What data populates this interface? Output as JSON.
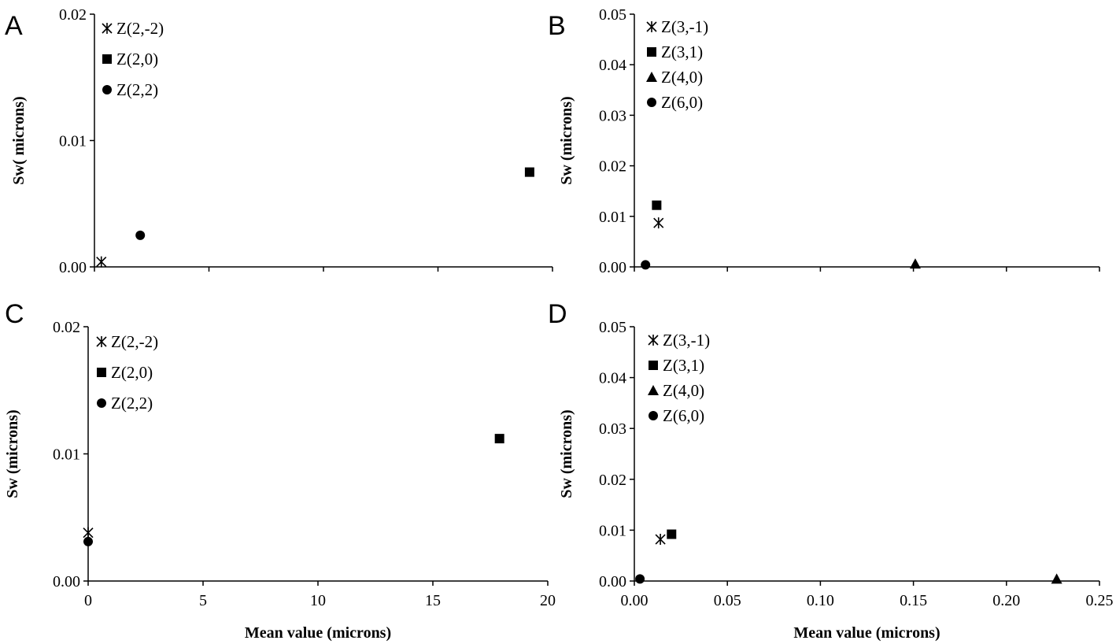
{
  "chart_data": [
    {
      "panel": "A",
      "type": "scatter",
      "xlabel": "",
      "ylabel": "Sw( microns)",
      "xlim": [
        0,
        20
      ],
      "ylim": [
        0,
        0.02
      ],
      "yticks": [
        "0.00",
        "0.01",
        "0.02"
      ],
      "xticks_labeled": false,
      "series": [
        {
          "name": "Z(2,-2)",
          "marker": "asterisk",
          "points": [
            [
              0.3,
              0.0004
            ]
          ]
        },
        {
          "name": "Z(2,0)",
          "marker": "square",
          "points": [
            [
              19.0,
              0.0075
            ]
          ]
        },
        {
          "name": "Z(2,2)",
          "marker": "circle",
          "points": [
            [
              2.0,
              0.0025
            ]
          ]
        }
      ]
    },
    {
      "panel": "B",
      "type": "scatter",
      "xlabel": "",
      "ylabel": "Sw (microns)",
      "xlim": [
        0,
        0.25
      ],
      "ylim": [
        0,
        0.05
      ],
      "yticks": [
        "0.00",
        "0.01",
        "0.02",
        "0.03",
        "0.04",
        "0.05"
      ],
      "xticks_labeled": false,
      "series": [
        {
          "name": "Z(3,-1)",
          "marker": "asterisk",
          "points": [
            [
              0.013,
              0.0087
            ]
          ]
        },
        {
          "name": "Z(3,1)",
          "marker": "square",
          "points": [
            [
              0.012,
              0.0122
            ]
          ]
        },
        {
          "name": "Z(4,0)",
          "marker": "triangle",
          "points": [
            [
              0.151,
              0.0006
            ]
          ]
        },
        {
          "name": "Z(6,0)",
          "marker": "circle",
          "points": [
            [
              0.006,
              0.0004
            ]
          ]
        }
      ]
    },
    {
      "panel": "C",
      "type": "scatter",
      "xlabel": "Mean value (microns)",
      "ylabel": "Sw (microns)",
      "xlim": [
        0,
        20
      ],
      "ylim": [
        0,
        0.02
      ],
      "xticks": [
        "0",
        "5",
        "10",
        "15",
        "20"
      ],
      "yticks": [
        "0.00",
        "0.01",
        "0.02"
      ],
      "xticks_labeled": true,
      "series": [
        {
          "name": "Z(2,-2)",
          "marker": "asterisk",
          "points": [
            [
              0.0,
              0.0038
            ]
          ]
        },
        {
          "name": "Z(2,0)",
          "marker": "square",
          "points": [
            [
              17.9,
              0.0112
            ]
          ]
        },
        {
          "name": "Z(2,2)",
          "marker": "circle",
          "points": [
            [
              0.0,
              0.0031
            ]
          ]
        }
      ]
    },
    {
      "panel": "D",
      "type": "scatter",
      "xlabel": "Mean value (microns)",
      "ylabel": "Sw (microns)",
      "xlim": [
        0,
        0.25
      ],
      "ylim": [
        0,
        0.05
      ],
      "xticks": [
        "0.00",
        "0.05",
        "0.10",
        "0.15",
        "0.20",
        "0.25"
      ],
      "yticks": [
        "0.00",
        "0.01",
        "0.02",
        "0.03",
        "0.04",
        "0.05"
      ],
      "xticks_labeled": true,
      "series": [
        {
          "name": "Z(3,-1)",
          "marker": "asterisk",
          "points": [
            [
              0.014,
              0.0082
            ]
          ]
        },
        {
          "name": "Z(3,1)",
          "marker": "square",
          "points": [
            [
              0.02,
              0.0092
            ]
          ]
        },
        {
          "name": "Z(4,0)",
          "marker": "triangle",
          "points": [
            [
              0.227,
              0.0004
            ]
          ]
        },
        {
          "name": "Z(6,0)",
          "marker": "circle",
          "points": [
            [
              0.003,
              0.0004
            ]
          ]
        }
      ]
    }
  ]
}
